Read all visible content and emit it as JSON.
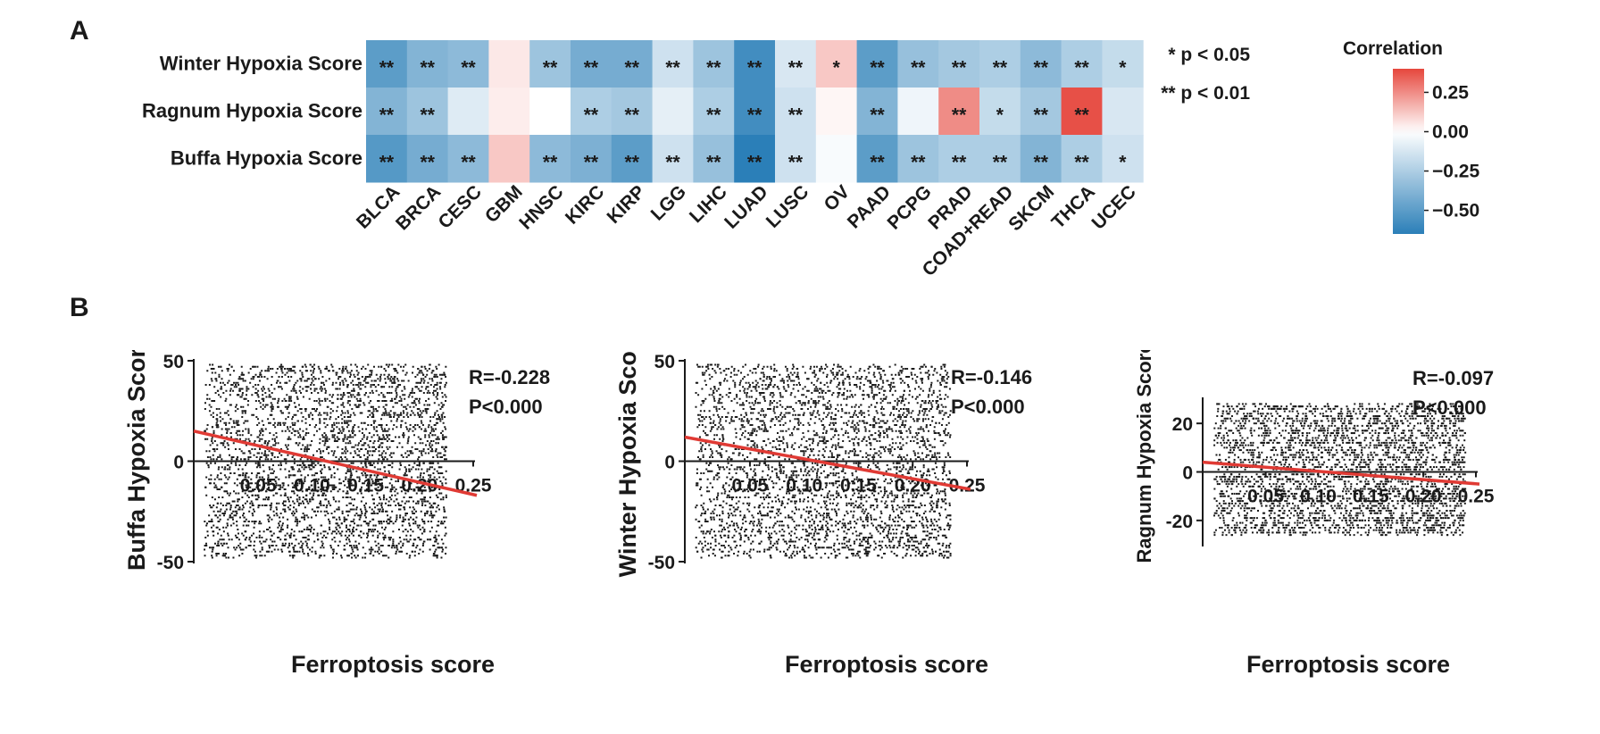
{
  "panels": {
    "a": "A",
    "b": "B"
  },
  "chart_data": [
    {
      "type": "heatmap",
      "rows": [
        "Winter Hypoxia Score",
        "Ragnum Hypoxia Score",
        "Buffa Hypoxia Score"
      ],
      "columns": [
        "BLCA",
        "BRCA",
        "CESC",
        "GBM",
        "HNSC",
        "KIRC",
        "KIRP",
        "LGG",
        "LIHC",
        "LUAD",
        "LUSC",
        "OV",
        "PAAD",
        "PCPG",
        "PRAD",
        "COAD+READ",
        "SKCM",
        "THCA",
        "UCEC"
      ],
      "values": [
        [
          -0.5,
          -0.38,
          -0.35,
          0.05,
          -0.3,
          -0.42,
          -0.42,
          -0.15,
          -0.3,
          -0.58,
          -0.12,
          0.12,
          -0.5,
          -0.32,
          -0.28,
          -0.25,
          -0.35,
          -0.25,
          -0.18
        ],
        [
          -0.38,
          -0.3,
          -0.1,
          0.04,
          0.0,
          -0.25,
          -0.28,
          -0.08,
          -0.25,
          -0.58,
          -0.15,
          0.02,
          -0.38,
          -0.05,
          0.25,
          -0.18,
          -0.28,
          0.38,
          -0.12
        ],
        [
          -0.52,
          -0.42,
          -0.35,
          0.12,
          -0.35,
          -0.4,
          -0.5,
          -0.15,
          -0.32,
          -0.65,
          -0.15,
          -0.02,
          -0.5,
          -0.3,
          -0.25,
          -0.25,
          -0.38,
          -0.25,
          -0.15
        ]
      ],
      "significance": [
        [
          "**",
          "**",
          "**",
          "",
          "**",
          "**",
          "**",
          "**",
          "**",
          "**",
          "**",
          "*",
          "**",
          "**",
          "**",
          "**",
          "**",
          "**",
          "*"
        ],
        [
          "**",
          "**",
          "",
          "",
          "",
          "**",
          "**",
          "",
          "**",
          "**",
          "**",
          "",
          "**",
          "",
          "**",
          "*",
          "**",
          "**",
          ""
        ],
        [
          "**",
          "**",
          "**",
          "",
          "**",
          "**",
          "**",
          "**",
          "**",
          "**",
          "**",
          "",
          "**",
          "**",
          "**",
          "**",
          "**",
          "**",
          "*"
        ]
      ],
      "legend": {
        "title": "Correlation",
        "ticks": [
          "0.25",
          "0.00",
          "−0.25",
          "−0.50"
        ],
        "tick_values": [
          0.25,
          0.0,
          -0.25,
          -0.5
        ],
        "range": [
          -0.65,
          0.4
        ]
      },
      "annotations": [
        "* p < 0.05",
        "** p < 0.01"
      ],
      "colors": {
        "negative": "#2b7fb8",
        "neutral": "#ffffff",
        "positive": "#e6473d"
      }
    },
    {
      "type": "scatter",
      "xlabel": "Ferroptosis score",
      "ylabel": "Buffa Hypoxia Score",
      "xlim": [
        -0.01,
        0.25
      ],
      "ylim": [
        -50,
        50
      ],
      "xticks": [
        "0.05",
        "0.10",
        "0.15",
        "0.20",
        "0.25"
      ],
      "xtick_values": [
        0.05,
        0.1,
        0.15,
        0.2,
        0.25
      ],
      "yticks": [
        "50",
        "0",
        "-50"
      ],
      "ytick_values": [
        50,
        0,
        -50
      ],
      "y_range": [
        -48,
        48
      ],
      "x_range": [
        0.0,
        0.225
      ],
      "fit": {
        "y_at_xmin": 15,
        "y_at_xmax": -17,
        "color": "#e03a34"
      },
      "stats": [
        "R=-0.228",
        "P<0.000"
      ]
    },
    {
      "type": "scatter",
      "xlabel": "Ferroptosis score",
      "ylabel": "Winter Hypoxia Score",
      "xlim": [
        -0.01,
        0.25
      ],
      "ylim": [
        -50,
        50
      ],
      "xticks": [
        "0.05",
        "0.10",
        "0.15",
        "0.20",
        "0.25"
      ],
      "xtick_values": [
        0.05,
        0.1,
        0.15,
        0.2,
        0.25
      ],
      "yticks": [
        "50",
        "0",
        "-50"
      ],
      "ytick_values": [
        50,
        0,
        -50
      ],
      "y_range": [
        -48,
        48
      ],
      "x_range": [
        0.0,
        0.235
      ],
      "fit": {
        "y_at_xmin": 12,
        "y_at_xmax": -14,
        "color": "#e03a34"
      },
      "stats": [
        "R=-0.146",
        "P<0.000"
      ]
    },
    {
      "type": "scatter",
      "xlabel": "Ferroptosis score",
      "ylabel": "Ragnum Hypoxia Score",
      "xlim": [
        -0.01,
        0.25
      ],
      "ylim": [
        -30,
        30
      ],
      "xticks": [
        "0.05",
        "0.10",
        "0.15",
        "0.20",
        "0.25"
      ],
      "xtick_values": [
        0.05,
        0.1,
        0.15,
        0.2,
        0.25
      ],
      "yticks": [
        "20",
        "0",
        "-20"
      ],
      "ytick_values": [
        20,
        0,
        -20
      ],
      "y_range": [
        -26,
        28
      ],
      "x_range": [
        0.0,
        0.24
      ],
      "fit": {
        "y_at_xmin": 4,
        "y_at_xmax": -5,
        "color": "#e03a34"
      },
      "stats": [
        "R=-0.097",
        "P<0.000"
      ]
    }
  ]
}
